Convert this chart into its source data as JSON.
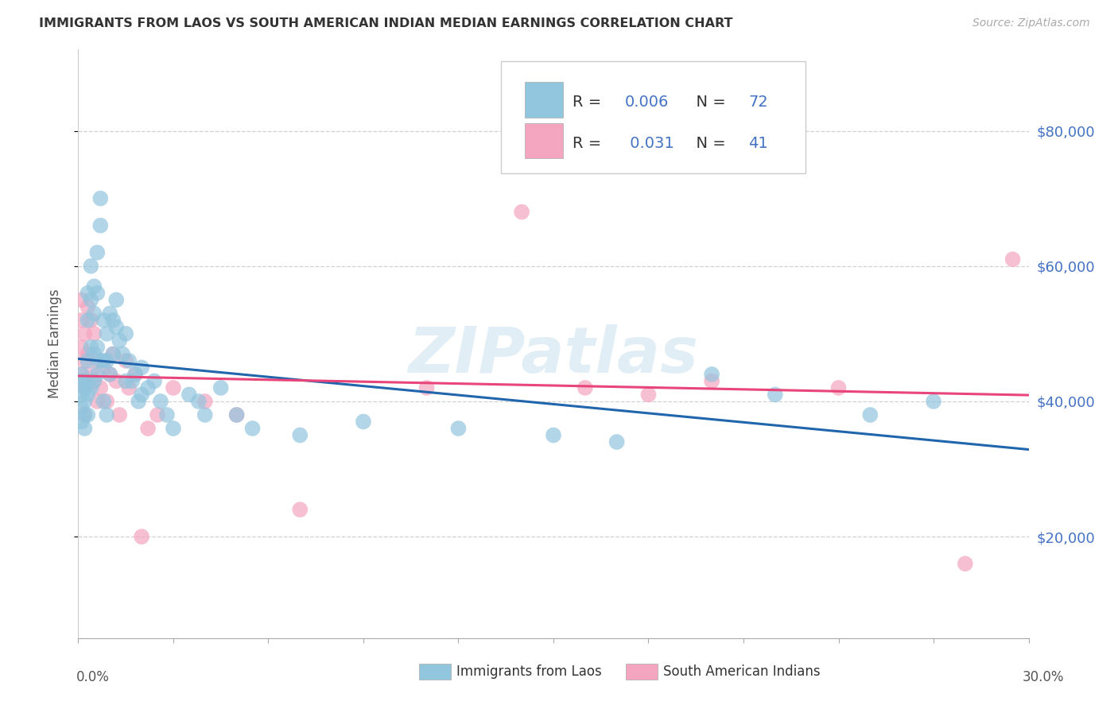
{
  "title": "IMMIGRANTS FROM LAOS VS SOUTH AMERICAN INDIAN MEDIAN EARNINGS CORRELATION CHART",
  "source": "Source: ZipAtlas.com",
  "ylabel": "Median Earnings",
  "xlim": [
    0.0,
    0.3
  ],
  "ylim": [
    5000,
    92000
  ],
  "legend_blue_r": "0.006",
  "legend_blue_n": "72",
  "legend_pink_r": "0.031",
  "legend_pink_n": "41",
  "legend_label_blue": "Immigrants from Laos",
  "legend_label_pink": "South American Indians",
  "blue_color": "#92c5de",
  "pink_color": "#f4a6c0",
  "blue_line_color": "#2166ac",
  "pink_line_color": "#e8457a",
  "watermark": "ZIPatlas",
  "blue_x": [
    0.001,
    0.001,
    0.001,
    0.001,
    0.001,
    0.002,
    0.002,
    0.002,
    0.002,
    0.002,
    0.003,
    0.003,
    0.003,
    0.003,
    0.003,
    0.004,
    0.004,
    0.004,
    0.004,
    0.005,
    0.005,
    0.005,
    0.005,
    0.006,
    0.006,
    0.006,
    0.006,
    0.007,
    0.007,
    0.007,
    0.008,
    0.008,
    0.008,
    0.009,
    0.009,
    0.009,
    0.01,
    0.01,
    0.011,
    0.011,
    0.012,
    0.012,
    0.013,
    0.014,
    0.015,
    0.015,
    0.016,
    0.017,
    0.018,
    0.019,
    0.02,
    0.02,
    0.022,
    0.024,
    0.026,
    0.028,
    0.03,
    0.035,
    0.038,
    0.04,
    0.045,
    0.05,
    0.055,
    0.07,
    0.09,
    0.12,
    0.15,
    0.17,
    0.2,
    0.22,
    0.25,
    0.27
  ],
  "blue_y": [
    43000,
    41000,
    39000,
    37000,
    44000,
    42000,
    40000,
    38000,
    36000,
    43000,
    56000,
    52000,
    46000,
    41000,
    38000,
    60000,
    55000,
    48000,
    42000,
    57000,
    53000,
    47000,
    43000,
    62000,
    56000,
    48000,
    44000,
    70000,
    66000,
    46000,
    52000,
    46000,
    40000,
    50000,
    46000,
    38000,
    53000,
    44000,
    52000,
    47000,
    55000,
    51000,
    49000,
    47000,
    50000,
    43000,
    46000,
    43000,
    44000,
    40000,
    45000,
    41000,
    42000,
    43000,
    40000,
    38000,
    36000,
    41000,
    40000,
    38000,
    42000,
    38000,
    36000,
    35000,
    37000,
    36000,
    35000,
    34000,
    44000,
    41000,
    38000,
    40000
  ],
  "pink_x": [
    0.001,
    0.001,
    0.001,
    0.001,
    0.002,
    0.002,
    0.002,
    0.002,
    0.003,
    0.003,
    0.004,
    0.004,
    0.005,
    0.005,
    0.006,
    0.006,
    0.007,
    0.008,
    0.009,
    0.01,
    0.011,
    0.012,
    0.013,
    0.015,
    0.016,
    0.018,
    0.02,
    0.022,
    0.025,
    0.03,
    0.04,
    0.05,
    0.07,
    0.11,
    0.14,
    0.16,
    0.18,
    0.2,
    0.24,
    0.28,
    0.295
  ],
  "pink_y": [
    55000,
    52000,
    48000,
    44000,
    50000,
    46000,
    42000,
    38000,
    54000,
    47000,
    52000,
    44000,
    50000,
    43000,
    46000,
    40000,
    42000,
    45000,
    40000,
    44000,
    47000,
    43000,
    38000,
    46000,
    42000,
    44000,
    20000,
    36000,
    38000,
    42000,
    40000,
    38000,
    24000,
    42000,
    68000,
    42000,
    41000,
    43000,
    42000,
    16000,
    61000
  ]
}
